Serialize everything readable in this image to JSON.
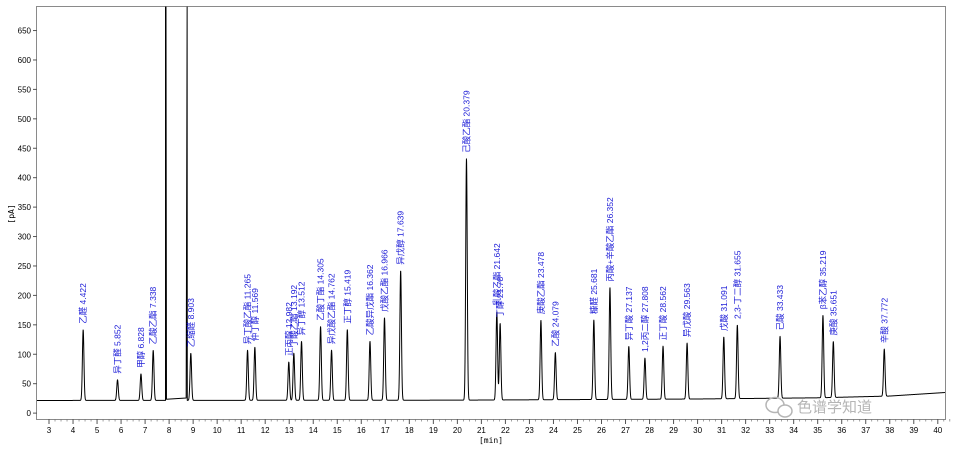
{
  "chart_data": {
    "type": "line",
    "xlabel": "[min]",
    "ylabel": "[pA]",
    "xlim": [
      2.5,
      40.3
    ],
    "ylim": [
      -10,
      690
    ],
    "x_ticks": [
      3,
      4,
      5,
      6,
      7,
      8,
      9,
      10,
      11,
      12,
      13,
      14,
      15,
      16,
      17,
      18,
      19,
      20,
      21,
      22,
      23,
      24,
      25,
      26,
      27,
      28,
      29,
      30,
      31,
      32,
      33,
      34,
      35,
      36,
      37,
      38,
      39,
      40
    ],
    "y_ticks": [
      0,
      50,
      100,
      150,
      200,
      250,
      300,
      350,
      400,
      450,
      500,
      550,
      600,
      650
    ],
    "grid": false,
    "baseline": [
      [
        2.5,
        21.5
      ],
      [
        20,
        22
      ],
      [
        30,
        24
      ],
      [
        35,
        26
      ],
      [
        38,
        29
      ],
      [
        40.3,
        35
      ]
    ],
    "solvent_peak": {
      "start": 7.85,
      "end": 8.75,
      "value": 690
    },
    "peaks": [
      {
        "rt": 4.422,
        "label": "乙醛 4.422",
        "height": 120
      },
      {
        "rt": 5.852,
        "label": "异丁醛 5.852",
        "height": 35
      },
      {
        "rt": 6.828,
        "label": "甲醇 6.828",
        "height": 45
      },
      {
        "rt": 7.338,
        "label": "乙酸乙酯 7.338",
        "height": 85
      },
      {
        "rt": 8.903,
        "label": "乙缩醛 8.903",
        "height": 80
      },
      {
        "rt": 11.265,
        "label": "异丁酸乙酯 11.265",
        "height": 85
      },
      {
        "rt": 11.569,
        "label": "仲丁醇 11.569",
        "height": 90
      },
      {
        "rt": 12.982,
        "label": "正丙醇 12.982",
        "height": 65
      },
      {
        "rt": 13.192,
        "label": "丁酸乙酯 13.192",
        "height": 80
      },
      {
        "rt": 13.512,
        "label": "异丁醇 13.512",
        "height": 100
      },
      {
        "rt": 14.305,
        "label": "乙酸丁酯 14.305",
        "height": 125
      },
      {
        "rt": 14.762,
        "label": "异戊酸乙酯 14.762",
        "height": 85
      },
      {
        "rt": 15.419,
        "label": "正丁醇 15.419",
        "height": 120
      },
      {
        "rt": 16.362,
        "label": "乙酸异戊酯 16.362",
        "height": 100
      },
      {
        "rt": 16.966,
        "label": "戊酸乙酯 16.966",
        "height": 140
      },
      {
        "rt": 17.639,
        "label": "异戊醇 17.639",
        "height": 220
      },
      {
        "rt": 20.379,
        "label": "己酸乙酯 20.379",
        "height": 410
      },
      {
        "rt": 21.642,
        "label": "乳酸乙酯 21.642",
        "height": 150
      },
      {
        "rt": 21.78,
        "label": "丁醇 21.78",
        "height": 130
      },
      {
        "rt": 23.478,
        "label": "庚酸乙酯 23.478",
        "height": 135
      },
      {
        "rt": 24.079,
        "label": "乙酸 24.079",
        "height": 80
      },
      {
        "rt": 25.681,
        "label": "糠醛 25.681",
        "height": 135
      },
      {
        "rt": 26.352,
        "label": "丙酸+辛酸乙酯 26.352",
        "height": 190
      },
      {
        "rt": 27.137,
        "label": "异丁酸 27.137",
        "height": 90
      },
      {
        "rt": 27.808,
        "label": "1,2丙二醇 27.808",
        "height": 70
      },
      {
        "rt": 28.562,
        "label": "正丁酸 28.562",
        "height": 90
      },
      {
        "rt": 29.563,
        "label": "异戊酸 29.563",
        "height": 95
      },
      {
        "rt": 31.091,
        "label": "戊酸 31.091",
        "height": 105
      },
      {
        "rt": 31.655,
        "label": "2,3-丁二醇 31.655",
        "height": 125
      },
      {
        "rt": 33.433,
        "label": "己酸 33.433",
        "height": 105
      },
      {
        "rt": 35.219,
        "label": "β苯乙醇 35.219",
        "height": 140
      },
      {
        "rt": 35.651,
        "label": "庚酸 35.651",
        "height": 95
      },
      {
        "rt": 37.772,
        "label": "辛酸 37.772",
        "height": 80
      }
    ]
  },
  "watermark": {
    "text": "色谱学知道"
  }
}
